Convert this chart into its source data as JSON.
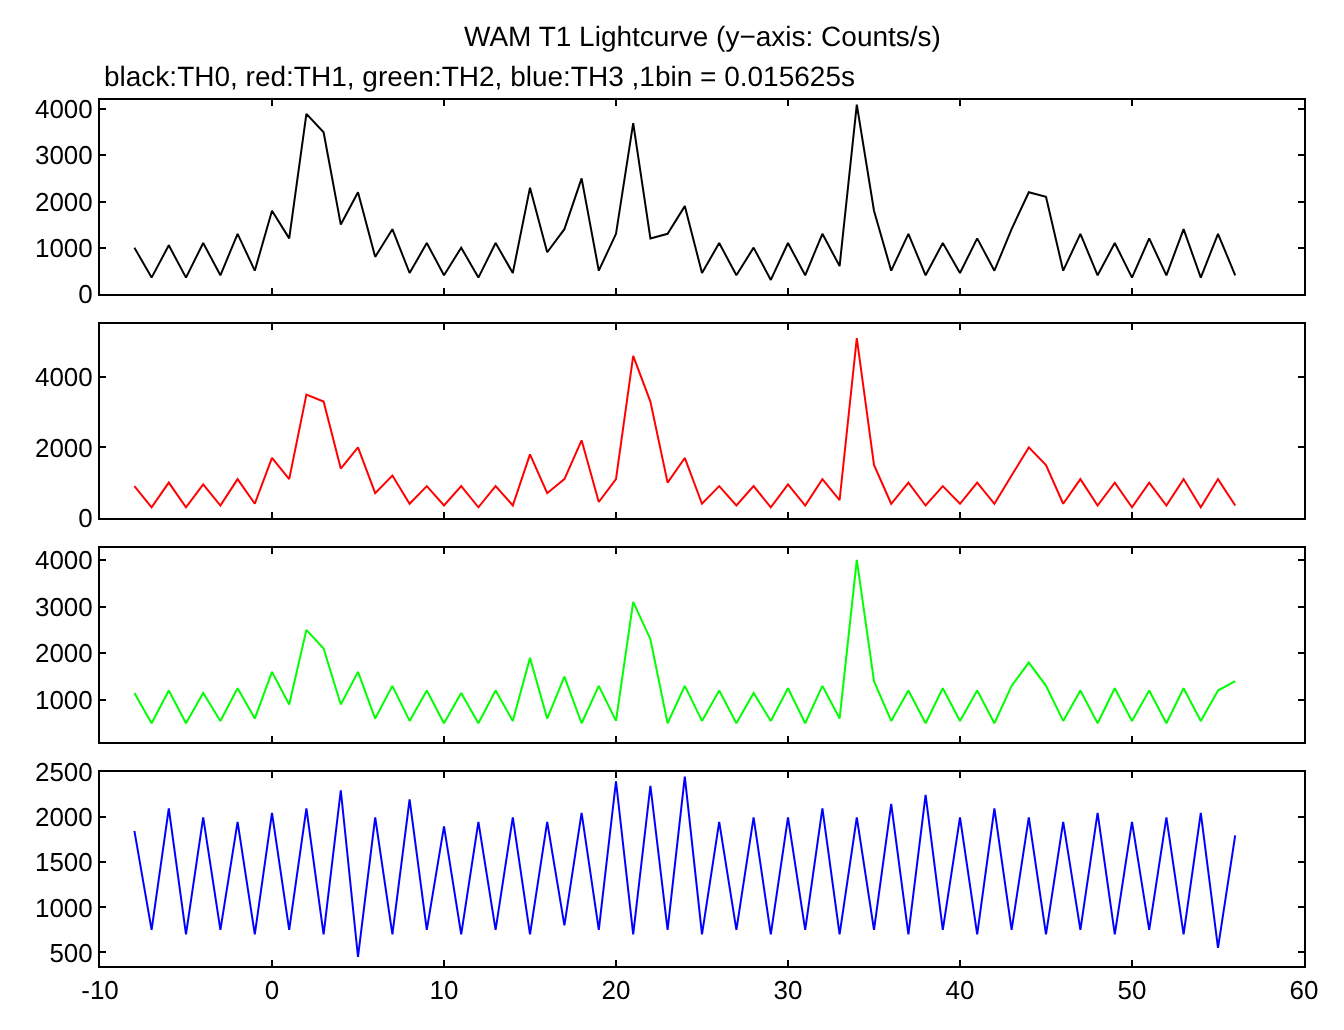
{
  "chart_data": [
    {
      "type": "line",
      "title": "WAM T1 Lightcurve (y−axis: Counts/s)",
      "subtitle": "black:TH0, red:TH1, green:TH2, blue:TH3 ,1bin = 0.015625s",
      "x": [
        -8,
        -7,
        -6,
        -5,
        -4,
        -3,
        -2,
        -1,
        0,
        1,
        2,
        3,
        4,
        5,
        6,
        7,
        8,
        9,
        10,
        11,
        12,
        13,
        14,
        15,
        16,
        17,
        18,
        19,
        20,
        21,
        22,
        23,
        24,
        25,
        26,
        27,
        28,
        29,
        30,
        31,
        32,
        33,
        34,
        35,
        36,
        37,
        38,
        39,
        40,
        41,
        42,
        43,
        44,
        45,
        46,
        47,
        48,
        49,
        50,
        51,
        52,
        53,
        54,
        55,
        56
      ],
      "series": [
        {
          "color": "#000000",
          "values": [
            1000,
            350,
            1050,
            350,
            1100,
            400,
            1300,
            500,
            1800,
            1200,
            3900,
            3500,
            1500,
            2200,
            800,
            1400,
            450,
            1100,
            400,
            1000,
            350,
            1100,
            450,
            2300,
            900,
            1400,
            2500,
            500,
            1300,
            3700,
            1200,
            1300,
            1900,
            450,
            1100,
            400,
            1000,
            300,
            1100,
            400,
            1300,
            600,
            4100,
            1800,
            500,
            1300,
            400,
            1100,
            450,
            1200,
            500,
            1400,
            2200,
            2100,
            500,
            1300,
            400,
            1100,
            350,
            1200,
            400,
            1400,
            350,
            1300,
            400
          ]
        }
      ],
      "xlim": [
        -10,
        60
      ],
      "xticks": [
        -10,
        0,
        10,
        20,
        30,
        40,
        50,
        60
      ],
      "ylim": [
        0,
        4200
      ],
      "yticks": [
        0,
        1000,
        2000,
        3000,
        4000
      ],
      "tick_labels": "y",
      "marker": "none",
      "line_style": "solid"
    },
    {
      "type": "line",
      "x": [
        -8,
        -7,
        -6,
        -5,
        -4,
        -3,
        -2,
        -1,
        0,
        1,
        2,
        3,
        4,
        5,
        6,
        7,
        8,
        9,
        10,
        11,
        12,
        13,
        14,
        15,
        16,
        17,
        18,
        19,
        20,
        21,
        22,
        23,
        24,
        25,
        26,
        27,
        28,
        29,
        30,
        31,
        32,
        33,
        34,
        35,
        36,
        37,
        38,
        39,
        40,
        41,
        42,
        43,
        44,
        45,
        46,
        47,
        48,
        49,
        50,
        51,
        52,
        53,
        54,
        55,
        56
      ],
      "series": [
        {
          "color": "#ff0000",
          "values": [
            900,
            300,
            1000,
            300,
            950,
            350,
            1100,
            400,
            1700,
            1100,
            3500,
            3300,
            1400,
            2000,
            700,
            1200,
            400,
            900,
            350,
            900,
            300,
            900,
            350,
            1800,
            700,
            1100,
            2200,
            450,
            1100,
            4600,
            3300,
            1000,
            1700,
            400,
            900,
            350,
            900,
            300,
            950,
            350,
            1100,
            500,
            5100,
            1500,
            400,
            1000,
            350,
            900,
            400,
            1000,
            400,
            1200,
            2000,
            1500,
            400,
            1100,
            350,
            1000,
            300,
            1000,
            350,
            1100,
            300,
            1100,
            350
          ]
        }
      ],
      "xlim": [
        -10,
        60
      ],
      "xticks": [
        -10,
        0,
        10,
        20,
        30,
        40,
        50,
        60
      ],
      "ylim": [
        0,
        5500
      ],
      "yticks": [
        0,
        2000,
        4000
      ],
      "tick_labels": "y",
      "marker": "none",
      "line_style": "solid"
    },
    {
      "type": "line",
      "x": [
        -8,
        -7,
        -6,
        -5,
        -4,
        -3,
        -2,
        -1,
        0,
        1,
        2,
        3,
        4,
        5,
        6,
        7,
        8,
        9,
        10,
        11,
        12,
        13,
        14,
        15,
        16,
        17,
        18,
        19,
        20,
        21,
        22,
        23,
        24,
        25,
        26,
        27,
        28,
        29,
        30,
        31,
        32,
        33,
        34,
        35,
        36,
        37,
        38,
        39,
        40,
        41,
        42,
        43,
        44,
        45,
        46,
        47,
        48,
        49,
        50,
        51,
        52,
        53,
        54,
        55,
        56
      ],
      "series": [
        {
          "color": "#00ff00",
          "values": [
            1150,
            500,
            1200,
            500,
            1150,
            550,
            1250,
            600,
            1600,
            900,
            2500,
            2100,
            900,
            1600,
            600,
            1300,
            550,
            1200,
            500,
            1150,
            500,
            1200,
            550,
            1900,
            600,
            1500,
            500,
            1300,
            550,
            3100,
            2300,
            500,
            1300,
            550,
            1200,
            500,
            1150,
            550,
            1250,
            500,
            1300,
            600,
            4000,
            1400,
            550,
            1200,
            500,
            1250,
            550,
            1200,
            500,
            1300,
            1800,
            1300,
            550,
            1200,
            500,
            1250,
            550,
            1200,
            500,
            1250,
            550,
            1200,
            1400
          ]
        }
      ],
      "xlim": [
        -10,
        60
      ],
      "xticks": [
        -10,
        0,
        10,
        20,
        30,
        40,
        50,
        60
      ],
      "ylim": [
        100,
        4250
      ],
      "yticks": [
        1000,
        2000,
        3000,
        4000
      ],
      "tick_labels": "y",
      "marker": "none",
      "line_style": "solid"
    },
    {
      "type": "line",
      "x": [
        -8,
        -7,
        -6,
        -5,
        -4,
        -3,
        -2,
        -1,
        0,
        1,
        2,
        3,
        4,
        5,
        6,
        7,
        8,
        9,
        10,
        11,
        12,
        13,
        14,
        15,
        16,
        17,
        18,
        19,
        20,
        21,
        22,
        23,
        24,
        25,
        26,
        27,
        28,
        29,
        30,
        31,
        32,
        33,
        34,
        35,
        36,
        37,
        38,
        39,
        40,
        41,
        42,
        43,
        44,
        45,
        46,
        47,
        48,
        49,
        50,
        51,
        52,
        53,
        54,
        55,
        56
      ],
      "series": [
        {
          "color": "#0000ff",
          "values": [
            1850,
            750,
            2100,
            700,
            2000,
            750,
            1950,
            700,
            2050,
            750,
            2100,
            700,
            2300,
            450,
            2000,
            700,
            2200,
            750,
            1900,
            700,
            1950,
            750,
            2000,
            700,
            1950,
            800,
            2050,
            750,
            2400,
            700,
            2350,
            750,
            2450,
            700,
            1950,
            750,
            2000,
            700,
            2000,
            750,
            2100,
            700,
            2000,
            750,
            2150,
            700,
            2250,
            750,
            2000,
            700,
            2100,
            750,
            2000,
            700,
            1950,
            750,
            2050,
            700,
            1950,
            750,
            2000,
            700,
            2050,
            550,
            1800
          ]
        }
      ],
      "xlim": [
        -10,
        60
      ],
      "xticks": [
        -10,
        0,
        10,
        20,
        30,
        40,
        50,
        60
      ],
      "ylim": [
        350,
        2500
      ],
      "yticks": [
        500,
        1000,
        1500,
        2000,
        2500
      ],
      "marker": "none",
      "line_style": "solid"
    }
  ]
}
